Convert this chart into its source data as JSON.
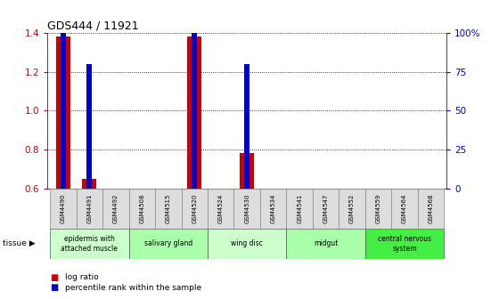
{
  "title": "GDS444 / 11921",
  "samples": [
    "GSM4490",
    "GSM4491",
    "GSM4492",
    "GSM4508",
    "GSM4515",
    "GSM4520",
    "GSM4524",
    "GSM4530",
    "GSM4534",
    "GSM4541",
    "GSM4547",
    "GSM4552",
    "GSM4559",
    "GSM4564",
    "GSM4568"
  ],
  "log_ratio": [
    1.38,
    0.65,
    0.6,
    0.6,
    0.6,
    1.38,
    0.6,
    0.78,
    0.6,
    0.6,
    0.6,
    0.6,
    0.6,
    0.6,
    0.6
  ],
  "percentile": [
    100,
    80,
    0,
    0,
    0,
    100,
    0,
    80,
    0,
    0,
    0,
    0,
    0,
    0,
    0
  ],
  "ylim_left": [
    0.6,
    1.4
  ],
  "ylim_right": [
    0,
    100
  ],
  "yticks_left": [
    0.6,
    0.8,
    1.0,
    1.2,
    1.4
  ],
  "yticks_right": [
    0,
    25,
    50,
    75,
    100
  ],
  "ytick_labels_right": [
    "0",
    "25",
    "50",
    "75",
    "100%"
  ],
  "bar_color_red": "#cc0000",
  "bar_color_blue": "#0000cc",
  "tissue_groups": [
    {
      "label": "epidermis with\nattached muscle",
      "start": 0,
      "end": 3,
      "color": "#ccffcc"
    },
    {
      "label": "salivary gland",
      "start": 3,
      "end": 6,
      "color": "#aaffaa"
    },
    {
      "label": "wing disc",
      "start": 6,
      "end": 9,
      "color": "#ccffcc"
    },
    {
      "label": "midgut",
      "start": 9,
      "end": 12,
      "color": "#aaffaa"
    },
    {
      "label": "central nervous\nsystem",
      "start": 12,
      "end": 15,
      "color": "#44ee44"
    }
  ],
  "legend_items": [
    {
      "label": "log ratio",
      "color": "#cc0000"
    },
    {
      "label": "percentile rank within the sample",
      "color": "#0000cc"
    }
  ],
  "tissue_label": "tissue",
  "background_color": "#ffffff",
  "tick_color_left": "#cc0000",
  "tick_color_right": "#0000cc"
}
